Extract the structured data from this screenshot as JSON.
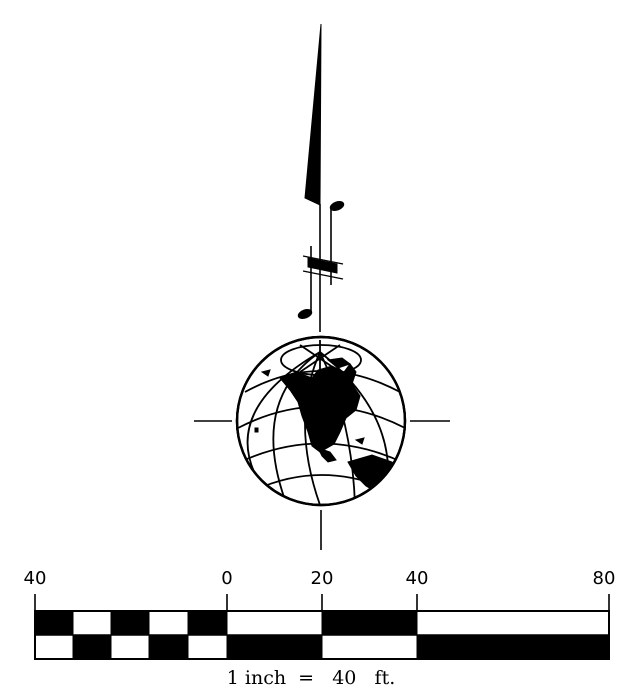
{
  "scale_bar": {
    "tick_labels": [
      "40",
      "0",
      "20",
      "40",
      "80"
    ],
    "caption": {
      "prefix": "1",
      "unit_in": "inch",
      "equals": "=",
      "value": "40",
      "unit_ft": "ft."
    }
  },
  "north_arrow": {
    "icon": "north-arrow-musical-notes-icon"
  },
  "globe": {
    "icon": "globe-north-america-icon"
  },
  "colors": {
    "ink": "#000000",
    "paper": "#ffffff"
  }
}
